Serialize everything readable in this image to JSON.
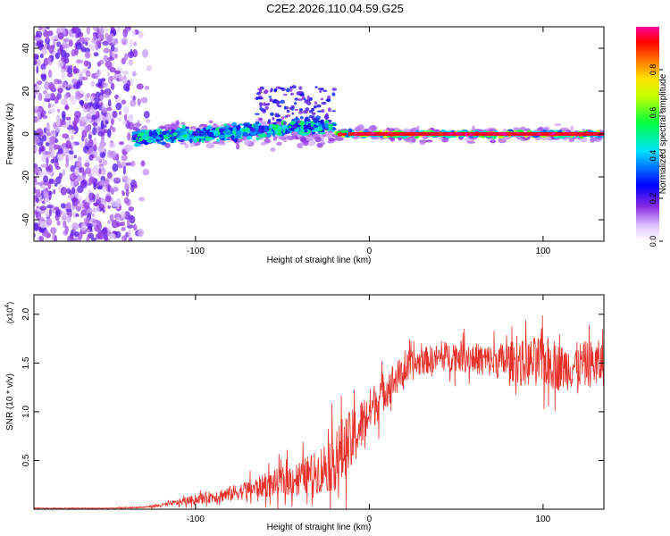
{
  "title": "C2E2.2026.110.04.59.G25",
  "chart_data": [
    {
      "type": "heatmap",
      "name": "spectrogram",
      "xlabel": "Height of straight line (km)",
      "ylabel": "Frequency (Hz)",
      "xlim": [
        -193,
        135
      ],
      "ylim": [
        -50,
        50
      ],
      "xticks": [
        -100,
        0,
        100
      ],
      "yticks": [
        -40,
        -20,
        0,
        20,
        40
      ],
      "colorbar": {
        "label": "Normalized spectral amplitude",
        "range": [
          0,
          1
        ],
        "ticks": [
          0.0,
          0.2,
          0.4,
          0.6,
          0.8
        ]
      },
      "description_points": {
        "noise_region_x": [
          -193,
          -125
        ],
        "signal_start_x": -135,
        "signal_frequency_hz": 0,
        "spread_region_x": [
          -135,
          -20
        ],
        "spread_peak_hz": 22,
        "high_amplitude_region_x": [
          -20,
          135
        ],
        "high_amplitude_value": 0.95
      }
    },
    {
      "type": "line",
      "name": "snr",
      "xlabel": "Height of straight line (km)",
      "ylabel": "SNR (10 * v/v)",
      "yscale_label": "(x10",
      "yscale_exp": "4",
      "xlim": [
        -193,
        135
      ],
      "ylim": [
        0,
        2.2
      ],
      "xticks": [
        -100,
        0,
        100
      ],
      "yticks": [
        0.5,
        1.0,
        1.5,
        2.0
      ],
      "color": "#e8302a",
      "x": [
        -193,
        -170,
        -150,
        -130,
        -120,
        -110,
        -100,
        -90,
        -80,
        -70,
        -60,
        -50,
        -40,
        -30,
        -25,
        -20,
        -15,
        -10,
        -5,
        0,
        10,
        20,
        30,
        40,
        50,
        60,
        70,
        80,
        90,
        100,
        110,
        120,
        135
      ],
      "values": [
        0.01,
        0.01,
        0.01,
        0.02,
        0.04,
        0.07,
        0.1,
        0.13,
        0.16,
        0.2,
        0.24,
        0.28,
        0.33,
        0.38,
        0.45,
        0.5,
        0.6,
        0.7,
        0.85,
        1.0,
        1.25,
        1.42,
        1.52,
        1.55,
        1.58,
        1.55,
        1.52,
        1.52,
        1.5,
        1.52,
        1.45,
        1.48,
        1.5
      ],
      "noise_amplitude": [
        0.005,
        0.005,
        0.005,
        0.01,
        0.02,
        0.04,
        0.06,
        0.08,
        0.1,
        0.12,
        0.15,
        0.2,
        0.22,
        0.28,
        0.35,
        0.4,
        0.45,
        0.4,
        0.35,
        0.3,
        0.25,
        0.2,
        0.18,
        0.18,
        0.2,
        0.2,
        0.22,
        0.25,
        0.3,
        0.35,
        0.3,
        0.3,
        0.3
      ]
    }
  ]
}
